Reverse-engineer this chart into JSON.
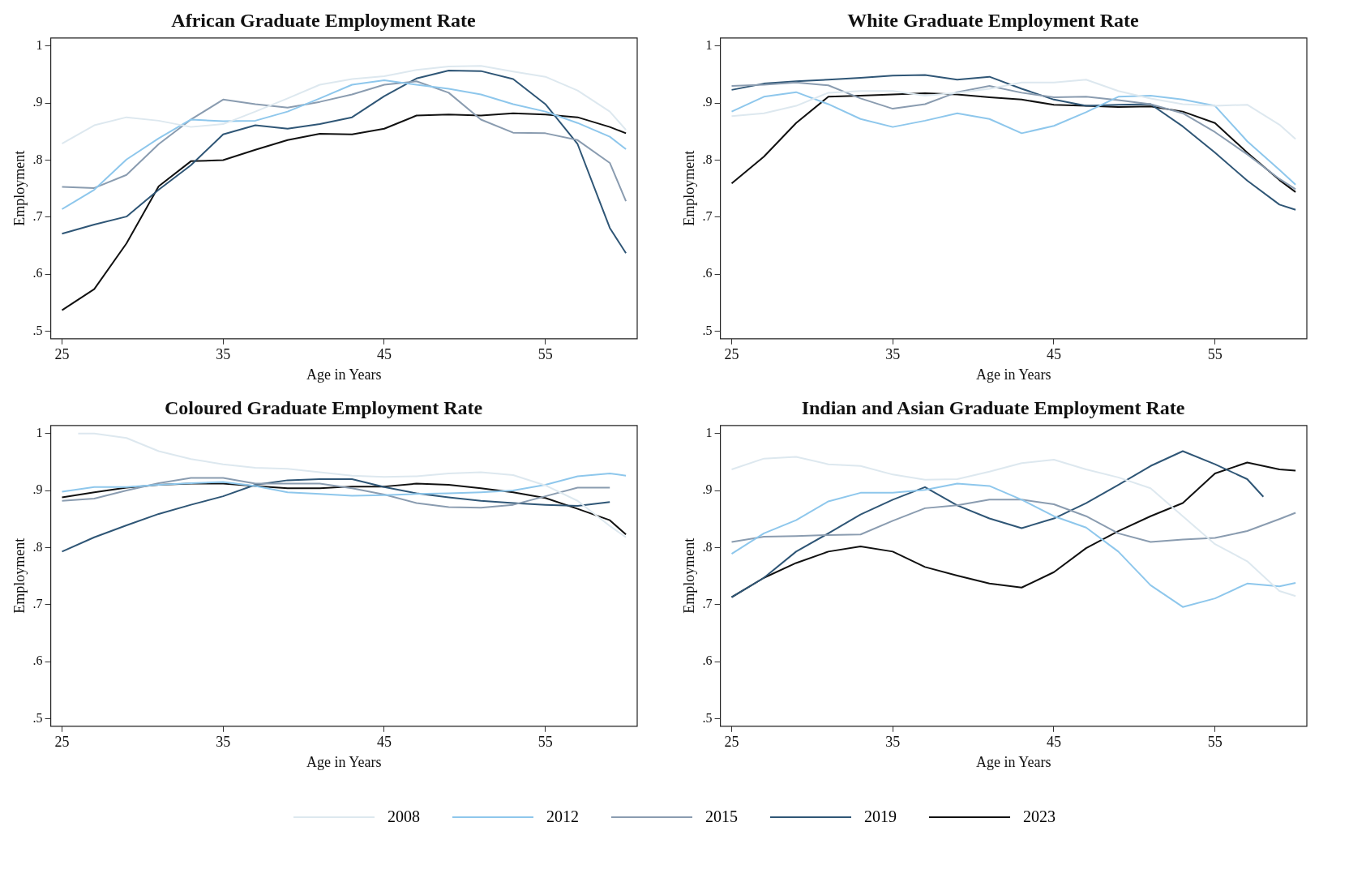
{
  "chart_data": [
    {
      "type": "line",
      "title": "African Graduate Employment Rate",
      "xlabel": "Age in Years",
      "ylabel": "Employment",
      "legend": "bottom",
      "x": [
        25,
        27,
        29,
        31,
        33,
        35,
        37,
        39,
        41,
        43,
        45,
        47,
        49,
        51,
        53,
        55,
        57,
        59,
        60
      ],
      "xlim": [
        24.3,
        60.7
      ],
      "xticks": [
        25,
        35,
        45,
        55
      ],
      "ylim": [
        0.487,
        1.014
      ],
      "yticks": [
        {
          "value": 0.5,
          "label": ".5"
        },
        {
          "value": 0.6,
          "label": ".6"
        },
        {
          "value": 0.7,
          "label": ".7"
        },
        {
          "value": 0.8,
          "label": ".8"
        },
        {
          "value": 0.9,
          "label": ".9"
        },
        {
          "value": 1,
          "label": "1"
        }
      ],
      "grid": false,
      "marker": "none",
      "line_style": "solid",
      "series": [
        {
          "name": "2008",
          "color": "#dde8ef",
          "values": [
            0.829,
            0.861,
            0.875,
            0.869,
            0.858,
            0.863,
            0.885,
            0.908,
            0.932,
            0.942,
            0.947,
            0.958,
            0.964,
            0.965,
            0.955,
            0.946,
            0.922,
            0.885,
            0.853
          ]
        },
        {
          "name": "2012",
          "color": "#8ec7ec",
          "values": [
            0.714,
            0.748,
            0.801,
            0.838,
            0.871,
            0.868,
            0.869,
            0.885,
            0.908,
            0.932,
            0.94,
            0.932,
            0.925,
            0.915,
            0.898,
            0.885,
            0.865,
            0.841,
            0.819
          ]
        },
        {
          "name": "2015",
          "color": "#8a9cb0",
          "values": [
            0.753,
            0.751,
            0.774,
            0.828,
            0.871,
            0.906,
            0.898,
            0.892,
            0.902,
            0.915,
            0.932,
            0.938,
            0.918,
            0.871,
            0.848,
            0.847,
            0.835,
            0.795,
            0.728
          ]
        },
        {
          "name": "2019",
          "color": "#2f5676",
          "values": [
            0.671,
            0.687,
            0.701,
            0.748,
            0.791,
            0.845,
            0.861,
            0.855,
            0.863,
            0.875,
            0.912,
            0.943,
            0.957,
            0.956,
            0.942,
            0.898,
            0.828,
            0.681,
            0.637
          ]
        },
        {
          "name": "2023",
          "color": "#111111",
          "values": [
            0.537,
            0.574,
            0.654,
            0.754,
            0.798,
            0.8,
            0.818,
            0.835,
            0.846,
            0.845,
            0.855,
            0.878,
            0.88,
            0.878,
            0.882,
            0.88,
            0.875,
            0.858,
            0.847
          ]
        }
      ]
    },
    {
      "type": "line",
      "title": "White Graduate Employment Rate",
      "xlabel": "Age in Years",
      "ylabel": "Employment",
      "legend": "bottom",
      "x": [
        25,
        27,
        29,
        31,
        33,
        35,
        37,
        39,
        41,
        43,
        45,
        47,
        49,
        51,
        53,
        55,
        57,
        59,
        60
      ],
      "xlim": [
        24.3,
        60.7
      ],
      "xticks": [
        25,
        35,
        45,
        55
      ],
      "ylim": [
        0.487,
        1.014
      ],
      "yticks": [
        {
          "value": 0.5,
          "label": ".5"
        },
        {
          "value": 0.6,
          "label": ".6"
        },
        {
          "value": 0.7,
          "label": ".7"
        },
        {
          "value": 0.8,
          "label": ".8"
        },
        {
          "value": 0.9,
          "label": ".9"
        },
        {
          "value": 1,
          "label": "1"
        }
      ],
      "grid": false,
      "marker": "none",
      "line_style": "solid",
      "series": [
        {
          "name": "2008",
          "color": "#dde8ef",
          "values": [
            0.877,
            0.882,
            0.895,
            0.918,
            0.921,
            0.921,
            0.913,
            0.918,
            0.925,
            0.936,
            0.936,
            0.941,
            0.921,
            0.908,
            0.898,
            0.895,
            0.897,
            0.862,
            0.837
          ]
        },
        {
          "name": "2012",
          "color": "#8ec7ec",
          "values": [
            0.885,
            0.911,
            0.919,
            0.898,
            0.872,
            0.858,
            0.869,
            0.882,
            0.872,
            0.847,
            0.86,
            0.884,
            0.911,
            0.913,
            0.906,
            0.895,
            0.833,
            0.783,
            0.757
          ]
        },
        {
          "name": "2015",
          "color": "#8a9cb0",
          "values": [
            0.93,
            0.932,
            0.936,
            0.931,
            0.908,
            0.89,
            0.898,
            0.919,
            0.93,
            0.918,
            0.91,
            0.911,
            0.905,
            0.898,
            0.882,
            0.849,
            0.81,
            0.767,
            0.749
          ]
        },
        {
          "name": "2019",
          "color": "#2f5676",
          "values": [
            0.923,
            0.934,
            0.938,
            0.941,
            0.944,
            0.948,
            0.949,
            0.941,
            0.946,
            0.925,
            0.906,
            0.895,
            0.897,
            0.898,
            0.859,
            0.813,
            0.764,
            0.722,
            0.713
          ]
        },
        {
          "name": "2023",
          "color": "#111111",
          "values": [
            0.759,
            0.806,
            0.865,
            0.911,
            0.913,
            0.915,
            0.917,
            0.915,
            0.91,
            0.906,
            0.897,
            0.895,
            0.893,
            0.894,
            0.885,
            0.865,
            0.813,
            0.765,
            0.744
          ]
        }
      ]
    },
    {
      "type": "line",
      "title": "Coloured Graduate Employment Rate",
      "xlabel": "Age in Years",
      "ylabel": "Employment",
      "legend": "bottom",
      "x": [
        25,
        27,
        29,
        31,
        33,
        35,
        37,
        39,
        41,
        43,
        45,
        47,
        49,
        51,
        53,
        55,
        57,
        59,
        60
      ],
      "xlim": [
        24.3,
        60.7
      ],
      "xticks": [
        25,
        35,
        45,
        55
      ],
      "ylim": [
        0.487,
        1.014
      ],
      "yticks": [
        {
          "value": 0.5,
          "label": ".5"
        },
        {
          "value": 0.6,
          "label": ".6"
        },
        {
          "value": 0.7,
          "label": ".7"
        },
        {
          "value": 0.8,
          "label": ".8"
        },
        {
          "value": 0.9,
          "label": ".9"
        },
        {
          "value": 1,
          "label": "1"
        }
      ],
      "grid": false,
      "marker": "none",
      "line_style": "solid",
      "series": [
        {
          "name": "2008",
          "color": "#dde8ef",
          "x": [
            26,
            27,
            29,
            31,
            33,
            35,
            37,
            39,
            41,
            43,
            45,
            47,
            49,
            51,
            53,
            55,
            57,
            59,
            60
          ],
          "values": [
            1.0,
            1.0,
            0.992,
            0.969,
            0.955,
            0.946,
            0.94,
            0.938,
            0.932,
            0.926,
            0.924,
            0.925,
            0.93,
            0.932,
            0.927,
            0.909,
            0.882,
            0.838,
            0.818
          ]
        },
        {
          "name": "2012",
          "color": "#8ec7ec",
          "values": [
            0.898,
            0.906,
            0.906,
            0.91,
            0.913,
            0.915,
            0.908,
            0.897,
            0.894,
            0.891,
            0.892,
            0.894,
            0.895,
            0.897,
            0.9,
            0.91,
            0.925,
            0.93,
            0.926
          ]
        },
        {
          "name": "2015",
          "color": "#8a9cb0",
          "values": [
            0.882,
            0.886,
            0.9,
            0.913,
            0.922,
            0.922,
            0.912,
            0.912,
            0.912,
            0.904,
            0.893,
            0.878,
            0.871,
            0.87,
            0.875,
            0.89,
            0.905,
            0.905,
            null
          ]
        },
        {
          "name": "2019",
          "color": "#2f5676",
          "values": [
            0.793,
            0.818,
            0.839,
            0.859,
            0.875,
            0.89,
            0.91,
            0.918,
            0.92,
            0.92,
            0.906,
            0.895,
            0.888,
            0.882,
            0.878,
            0.875,
            0.873,
            0.88,
            null
          ]
        },
        {
          "name": "2023",
          "color": "#111111",
          "values": [
            0.888,
            0.897,
            0.905,
            0.91,
            0.912,
            0.912,
            0.908,
            0.904,
            0.904,
            0.907,
            0.907,
            0.912,
            0.91,
            0.904,
            0.897,
            0.887,
            0.868,
            0.848,
            0.823
          ]
        }
      ]
    },
    {
      "type": "line",
      "title": "Indian and Asian Graduate Employment Rate",
      "xlabel": "Age in Years",
      "ylabel": "Employment",
      "x": [
        25,
        27,
        29,
        31,
        33,
        35,
        37,
        39,
        41,
        43,
        45,
        47,
        49,
        51,
        53,
        55,
        57,
        59,
        60
      ],
      "xlim": [
        24.3,
        60.7
      ],
      "xticks": [
        25,
        35,
        45,
        55
      ],
      "ylim": [
        0.487,
        1.014
      ],
      "yticks": [
        {
          "value": 0.5,
          "label": ".5"
        },
        {
          "value": 0.6,
          "label": ".6"
        },
        {
          "value": 0.7,
          "label": ".7"
        },
        {
          "value": 0.8,
          "label": ".8"
        },
        {
          "value": 0.9,
          "label": ".9"
        },
        {
          "value": 1,
          "label": "1"
        }
      ],
      "grid": false,
      "marker": "none",
      "line_style": "solid",
      "legend": "bottom",
      "series": [
        {
          "name": "2008",
          "color": "#dde8ef",
          "values": [
            0.937,
            0.956,
            0.959,
            0.946,
            0.943,
            0.928,
            0.919,
            0.92,
            0.933,
            0.948,
            0.954,
            0.937,
            0.923,
            0.904,
            0.855,
            0.806,
            0.776,
            0.724,
            0.715
          ]
        },
        {
          "name": "2012",
          "color": "#8ec7ec",
          "values": [
            0.789,
            0.825,
            0.848,
            0.881,
            0.896,
            0.896,
            0.901,
            0.912,
            0.908,
            0.884,
            0.855,
            0.835,
            0.793,
            0.734,
            0.696,
            0.711,
            0.737,
            0.732,
            0.738
          ]
        },
        {
          "name": "2015",
          "color": "#8a9cb0",
          "values": [
            0.81,
            0.819,
            0.82,
            0.822,
            0.823,
            0.847,
            0.869,
            0.874,
            0.884,
            0.884,
            0.876,
            0.855,
            0.825,
            0.81,
            0.814,
            0.817,
            0.829,
            0.85,
            0.861
          ]
        },
        {
          "name": "2019",
          "color": "#2f5676",
          "x": [
            25,
            27,
            29,
            31,
            33,
            35,
            37,
            39,
            41,
            43,
            45,
            47,
            49,
            51,
            53,
            55,
            57,
            58
          ],
          "values": [
            0.713,
            0.747,
            0.793,
            0.825,
            0.858,
            0.884,
            0.906,
            0.874,
            0.851,
            0.834,
            0.851,
            0.878,
            0.91,
            0.943,
            0.969,
            0.946,
            0.92,
            0.889
          ]
        },
        {
          "name": "2023",
          "color": "#111111",
          "values": [
            0.713,
            0.747,
            0.773,
            0.793,
            0.802,
            0.793,
            0.766,
            0.751,
            0.737,
            0.73,
            0.757,
            0.799,
            0.829,
            0.855,
            0.878,
            0.93,
            0.949,
            0.937,
            0.935
          ]
        }
      ]
    }
  ]
}
